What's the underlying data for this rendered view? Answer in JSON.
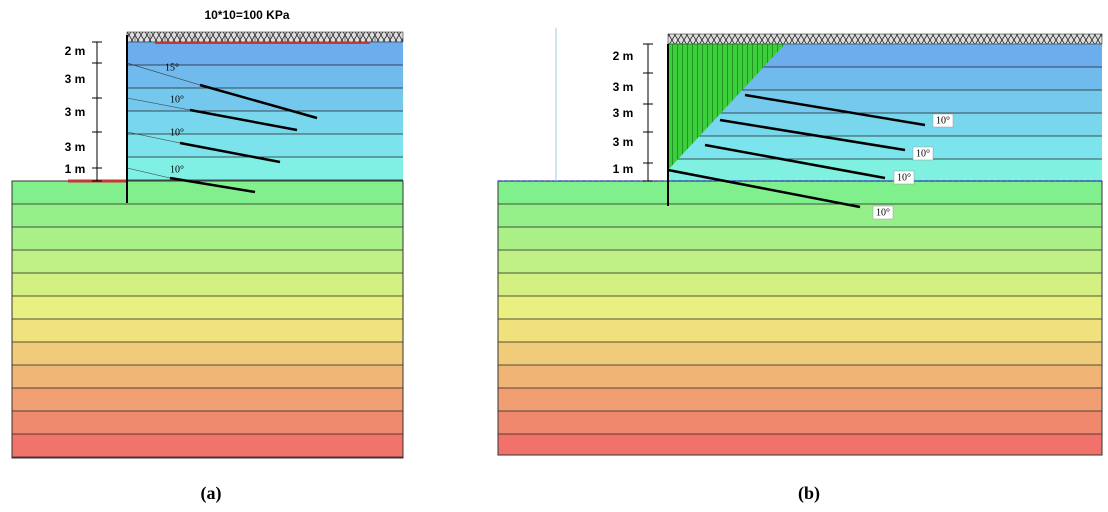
{
  "panel_a": {
    "load_label": "10*10=100 KPa",
    "dimensions": [
      "2 m",
      "3 m",
      "3 m",
      "3 m",
      "1 m"
    ],
    "angles": [
      "15°",
      "10°",
      "10°",
      "10°"
    ],
    "caption": "(a)"
  },
  "panel_b": {
    "dimensions": [
      "2 m",
      "3 m",
      "3 m",
      "3 m",
      "1 m"
    ],
    "angles": [
      "10°",
      "10°",
      "10°",
      "10°"
    ],
    "caption": "(b)"
  }
}
